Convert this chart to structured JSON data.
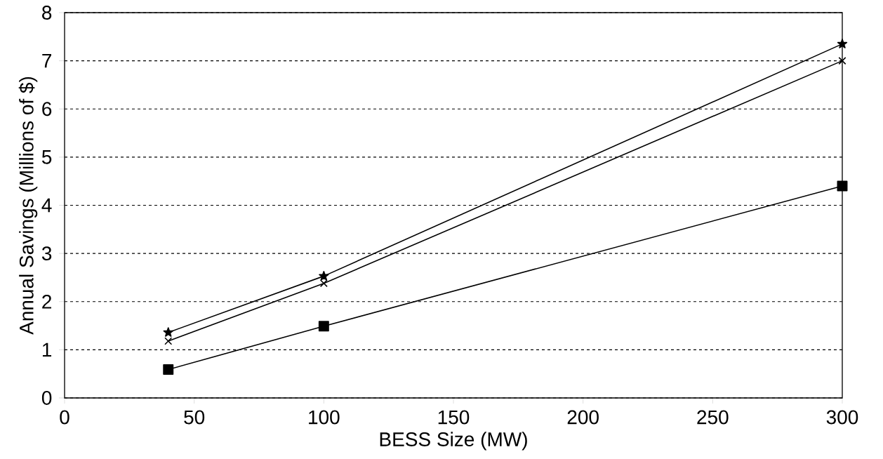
{
  "chart_data": {
    "type": "line",
    "xlabel": "BESS Size (MW)",
    "ylabel": "Annual Savings (Millions of $)",
    "x": [
      40,
      100,
      300
    ],
    "series": [
      {
        "color": "#000000",
        "marker": "star",
        "values": [
          1.36,
          2.53,
          7.35
        ]
      },
      {
        "color": "#000000",
        "marker": "cross",
        "values": [
          1.18,
          2.38,
          7.0
        ]
      },
      {
        "color": "#000000",
        "marker": "square",
        "values": [
          0.59,
          1.49,
          4.4
        ]
      }
    ],
    "xlim": [
      0,
      300
    ],
    "ylim": [
      0,
      8
    ],
    "xticks": [
      0,
      50,
      100,
      150,
      200,
      250,
      300
    ],
    "yticks": [
      0,
      1,
      2,
      3,
      4,
      5,
      6,
      7,
      8
    ],
    "grid": "y",
    "line_style": "solid"
  }
}
